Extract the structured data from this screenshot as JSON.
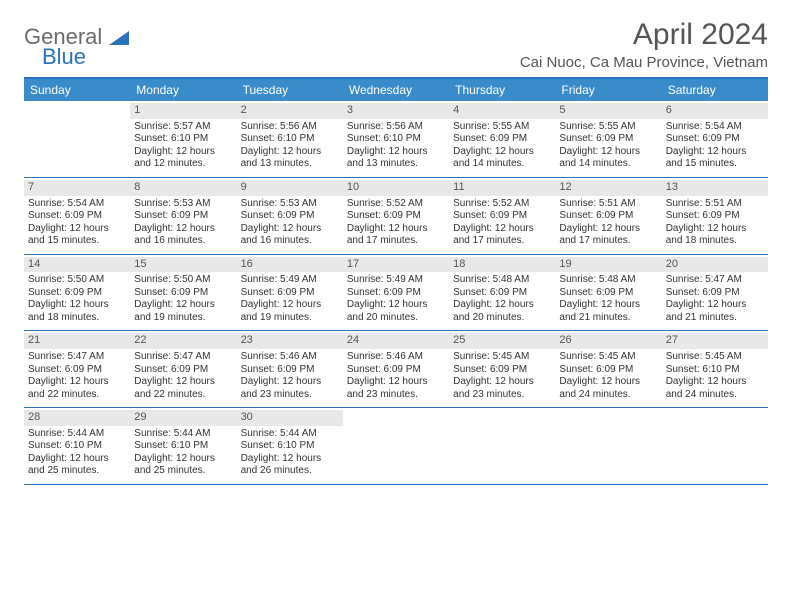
{
  "logo": {
    "word1": "General",
    "word2": "Blue"
  },
  "title": "April 2024",
  "location": "Cai Nuoc, Ca Mau Province, Vietnam",
  "colors": {
    "accent": "#2a73b8",
    "header_bg": "#3a8bc9",
    "daynum_bg": "#e8e8e8",
    "text": "#333333",
    "muted": "#555555"
  },
  "dow": [
    "Sunday",
    "Monday",
    "Tuesday",
    "Wednesday",
    "Thursday",
    "Friday",
    "Saturday"
  ],
  "weeks": [
    [
      {
        "n": "",
        "sr": "",
        "ss": "",
        "dl": ""
      },
      {
        "n": "1",
        "sr": "Sunrise: 5:57 AM",
        "ss": "Sunset: 6:10 PM",
        "dl": "Daylight: 12 hours and 12 minutes."
      },
      {
        "n": "2",
        "sr": "Sunrise: 5:56 AM",
        "ss": "Sunset: 6:10 PM",
        "dl": "Daylight: 12 hours and 13 minutes."
      },
      {
        "n": "3",
        "sr": "Sunrise: 5:56 AM",
        "ss": "Sunset: 6:10 PM",
        "dl": "Daylight: 12 hours and 13 minutes."
      },
      {
        "n": "4",
        "sr": "Sunrise: 5:55 AM",
        "ss": "Sunset: 6:09 PM",
        "dl": "Daylight: 12 hours and 14 minutes."
      },
      {
        "n": "5",
        "sr": "Sunrise: 5:55 AM",
        "ss": "Sunset: 6:09 PM",
        "dl": "Daylight: 12 hours and 14 minutes."
      },
      {
        "n": "6",
        "sr": "Sunrise: 5:54 AM",
        "ss": "Sunset: 6:09 PM",
        "dl": "Daylight: 12 hours and 15 minutes."
      }
    ],
    [
      {
        "n": "7",
        "sr": "Sunrise: 5:54 AM",
        "ss": "Sunset: 6:09 PM",
        "dl": "Daylight: 12 hours and 15 minutes."
      },
      {
        "n": "8",
        "sr": "Sunrise: 5:53 AM",
        "ss": "Sunset: 6:09 PM",
        "dl": "Daylight: 12 hours and 16 minutes."
      },
      {
        "n": "9",
        "sr": "Sunrise: 5:53 AM",
        "ss": "Sunset: 6:09 PM",
        "dl": "Daylight: 12 hours and 16 minutes."
      },
      {
        "n": "10",
        "sr": "Sunrise: 5:52 AM",
        "ss": "Sunset: 6:09 PM",
        "dl": "Daylight: 12 hours and 17 minutes."
      },
      {
        "n": "11",
        "sr": "Sunrise: 5:52 AM",
        "ss": "Sunset: 6:09 PM",
        "dl": "Daylight: 12 hours and 17 minutes."
      },
      {
        "n": "12",
        "sr": "Sunrise: 5:51 AM",
        "ss": "Sunset: 6:09 PM",
        "dl": "Daylight: 12 hours and 17 minutes."
      },
      {
        "n": "13",
        "sr": "Sunrise: 5:51 AM",
        "ss": "Sunset: 6:09 PM",
        "dl": "Daylight: 12 hours and 18 minutes."
      }
    ],
    [
      {
        "n": "14",
        "sr": "Sunrise: 5:50 AM",
        "ss": "Sunset: 6:09 PM",
        "dl": "Daylight: 12 hours and 18 minutes."
      },
      {
        "n": "15",
        "sr": "Sunrise: 5:50 AM",
        "ss": "Sunset: 6:09 PM",
        "dl": "Daylight: 12 hours and 19 minutes."
      },
      {
        "n": "16",
        "sr": "Sunrise: 5:49 AM",
        "ss": "Sunset: 6:09 PM",
        "dl": "Daylight: 12 hours and 19 minutes."
      },
      {
        "n": "17",
        "sr": "Sunrise: 5:49 AM",
        "ss": "Sunset: 6:09 PM",
        "dl": "Daylight: 12 hours and 20 minutes."
      },
      {
        "n": "18",
        "sr": "Sunrise: 5:48 AM",
        "ss": "Sunset: 6:09 PM",
        "dl": "Daylight: 12 hours and 20 minutes."
      },
      {
        "n": "19",
        "sr": "Sunrise: 5:48 AM",
        "ss": "Sunset: 6:09 PM",
        "dl": "Daylight: 12 hours and 21 minutes."
      },
      {
        "n": "20",
        "sr": "Sunrise: 5:47 AM",
        "ss": "Sunset: 6:09 PM",
        "dl": "Daylight: 12 hours and 21 minutes."
      }
    ],
    [
      {
        "n": "21",
        "sr": "Sunrise: 5:47 AM",
        "ss": "Sunset: 6:09 PM",
        "dl": "Daylight: 12 hours and 22 minutes."
      },
      {
        "n": "22",
        "sr": "Sunrise: 5:47 AM",
        "ss": "Sunset: 6:09 PM",
        "dl": "Daylight: 12 hours and 22 minutes."
      },
      {
        "n": "23",
        "sr": "Sunrise: 5:46 AM",
        "ss": "Sunset: 6:09 PM",
        "dl": "Daylight: 12 hours and 23 minutes."
      },
      {
        "n": "24",
        "sr": "Sunrise: 5:46 AM",
        "ss": "Sunset: 6:09 PM",
        "dl": "Daylight: 12 hours and 23 minutes."
      },
      {
        "n": "25",
        "sr": "Sunrise: 5:45 AM",
        "ss": "Sunset: 6:09 PM",
        "dl": "Daylight: 12 hours and 23 minutes."
      },
      {
        "n": "26",
        "sr": "Sunrise: 5:45 AM",
        "ss": "Sunset: 6:09 PM",
        "dl": "Daylight: 12 hours and 24 minutes."
      },
      {
        "n": "27",
        "sr": "Sunrise: 5:45 AM",
        "ss": "Sunset: 6:10 PM",
        "dl": "Daylight: 12 hours and 24 minutes."
      }
    ],
    [
      {
        "n": "28",
        "sr": "Sunrise: 5:44 AM",
        "ss": "Sunset: 6:10 PM",
        "dl": "Daylight: 12 hours and 25 minutes."
      },
      {
        "n": "29",
        "sr": "Sunrise: 5:44 AM",
        "ss": "Sunset: 6:10 PM",
        "dl": "Daylight: 12 hours and 25 minutes."
      },
      {
        "n": "30",
        "sr": "Sunrise: 5:44 AM",
        "ss": "Sunset: 6:10 PM",
        "dl": "Daylight: 12 hours and 26 minutes."
      },
      {
        "n": "",
        "sr": "",
        "ss": "",
        "dl": ""
      },
      {
        "n": "",
        "sr": "",
        "ss": "",
        "dl": ""
      },
      {
        "n": "",
        "sr": "",
        "ss": "",
        "dl": ""
      },
      {
        "n": "",
        "sr": "",
        "ss": "",
        "dl": ""
      }
    ]
  ]
}
